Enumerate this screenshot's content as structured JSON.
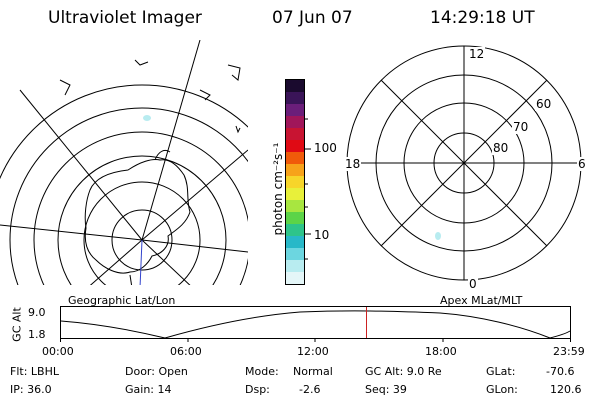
{
  "header": {
    "title": "Ultraviolet Imager",
    "date": "07 Jun 07",
    "time": "14:29:18 UT"
  },
  "colorbar": {
    "unit_label": "photon cm⁻²s⁻¹",
    "ticks": [
      "100",
      "10"
    ],
    "colors": [
      "#1a0a2e",
      "#3a1458",
      "#6b1e7a",
      "#a0165a",
      "#c81432",
      "#e00a14",
      "#f05a0a",
      "#f7a21a",
      "#f7d52a",
      "#e8f03a",
      "#a8e640",
      "#5cd448",
      "#2ec48a",
      "#28b8c8",
      "#6cd6e0",
      "#b8ecf0",
      "#e4f6f8"
    ]
  },
  "maps": {
    "left_label": "Geographic Lat/Lon",
    "right_label": "Apex MLat/MLT",
    "mlt_labels": [
      "12",
      "18",
      "6",
      "0"
    ],
    "mlat_labels": [
      "60",
      "70",
      "80"
    ]
  },
  "altitude_plot": {
    "ylabel": "GC Alt",
    "yticks": [
      "9.0",
      "1.8"
    ],
    "xticks": [
      "00:00",
      "06:00",
      "12:00",
      "18:00",
      "23:59"
    ],
    "current_time_fraction": 0.6
  },
  "status": {
    "filter": "Flt: LBHL",
    "ip": "IP: 36.0",
    "door": "Door: Open",
    "gain": "Gain: 14",
    "mode_label": "Mode:",
    "mode_value": "Normal",
    "dsp_label": "Dsp:",
    "dsp_value": "-2.6",
    "gcalt": "GC Alt: 9.0 Re",
    "seq": "Seq: 39",
    "glat_label": "GLat:",
    "glat_value": "-70.6",
    "glon_label": "GLon:",
    "glon_value": "120.6"
  }
}
